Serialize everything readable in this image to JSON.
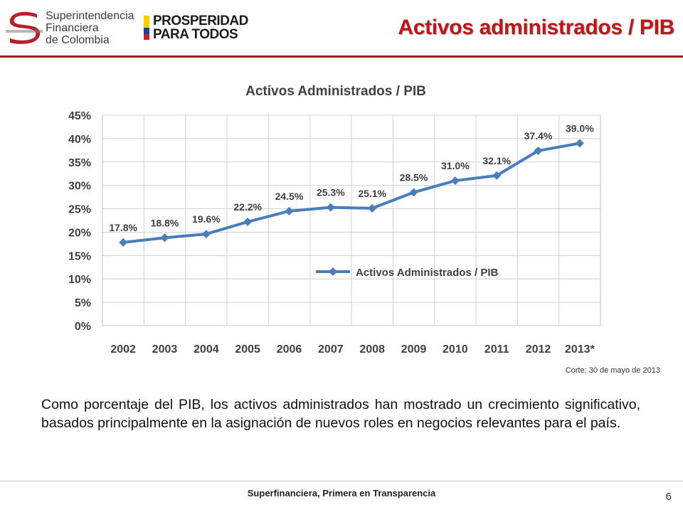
{
  "header": {
    "org_name_lines": [
      "Superintendencia",
      "Financiera",
      "de Colombia"
    ],
    "gov_logo_lines": [
      "PROSPERIDAD",
      "PARA TODOS"
    ],
    "slide_title": "Activos administrados / PIB",
    "rule_color": "#9b1b1f",
    "title_color": "#c0161a"
  },
  "chart_data": {
    "type": "line",
    "title": "Activos Administrados / PIB",
    "categories": [
      "2002",
      "2003",
      "2004",
      "2005",
      "2006",
      "2007",
      "2008",
      "2009",
      "2010",
      "2011",
      "2012",
      "2013*"
    ],
    "series": [
      {
        "name": "Activos Administrados  / PIB",
        "values": [
          17.8,
          18.8,
          19.6,
          22.2,
          24.5,
          25.3,
          25.1,
          28.5,
          31.0,
          32.1,
          37.4,
          39.0
        ],
        "labels": [
          "17.8%",
          "18.8%",
          "19.6%",
          "22.2%",
          "24.5%",
          "25.3%",
          "25.1%",
          "28.5%",
          "31.0%",
          "32.1%",
          "37.4%",
          "39.0%"
        ],
        "color": "#4a7ebb"
      }
    ],
    "ylim": [
      0,
      45
    ],
    "yticks": [
      "0%",
      "5%",
      "10%",
      "15%",
      "20%",
      "25%",
      "30%",
      "35%",
      "40%",
      "45%"
    ],
    "ytick_values": [
      0,
      5,
      10,
      15,
      20,
      25,
      30,
      35,
      40,
      45
    ],
    "grid": true,
    "legend": "inside-right"
  },
  "note": "Corte: 30 de mayo de 2013",
  "body_text": "Como porcentaje del PIB, los activos administrados han mostrado un crecimiento significativo, basados principalmente en la asignación de nuevos roles en negocios relevantes para el país.",
  "footer": {
    "tagline": "Superfinanciera, Primera en Transparencia",
    "page_number": "6"
  }
}
